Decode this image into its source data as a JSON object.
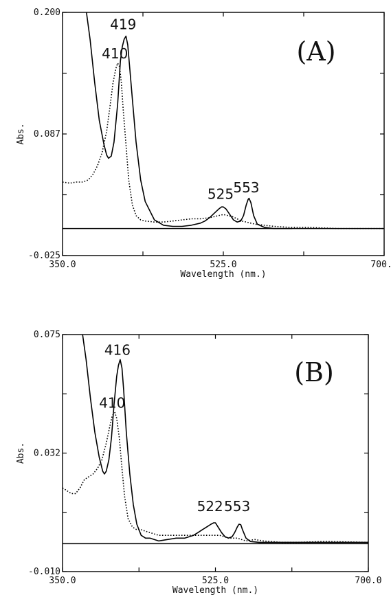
{
  "chart_data": [
    {
      "type": "line",
      "panel_label": "(A)",
      "xlabel": "Wavelength (nm.)",
      "ylabel": "Abs.",
      "xlim": [
        350.0,
        700.0
      ],
      "ylim": [
        -0.025,
        0.2
      ],
      "xticks": [
        "350.0",
        "525.0",
        "700.0"
      ],
      "yticks": [
        "0.200",
        "0.087",
        "-0.025"
      ],
      "peak_labels": [
        {
          "text": "419",
          "x": 419,
          "y": 0.18
        },
        {
          "text": "410",
          "x": 410,
          "y": 0.153
        },
        {
          "text": "525",
          "x": 525,
          "y": 0.023
        },
        {
          "text": "553",
          "x": 553,
          "y": 0.029
        }
      ],
      "baseline": 0.0,
      "series": [
        {
          "style": "solid",
          "x": [
            376,
            380,
            385,
            390,
            395,
            398,
            400,
            403,
            406,
            410,
            413,
            415,
            417,
            419,
            421,
            423,
            426,
            430,
            435,
            440,
            450,
            460,
            470,
            480,
            490,
            500,
            505,
            510,
            515,
            520,
            523,
            525,
            528,
            532,
            536,
            540,
            544,
            547,
            550,
            552,
            553,
            555,
            558,
            562,
            570,
            580,
            600
          ],
          "y": [
            0.2,
            0.175,
            0.135,
            0.1,
            0.078,
            0.068,
            0.065,
            0.067,
            0.08,
            0.115,
            0.155,
            0.168,
            0.175,
            0.178,
            0.17,
            0.15,
            0.12,
            0.08,
            0.045,
            0.025,
            0.008,
            0.003,
            0.002,
            0.002,
            0.003,
            0.005,
            0.007,
            0.01,
            0.014,
            0.018,
            0.02,
            0.02,
            0.018,
            0.013,
            0.008,
            0.006,
            0.007,
            0.012,
            0.022,
            0.027,
            0.028,
            0.024,
            0.012,
            0.004,
            0.001,
            0.0,
            0.0
          ]
        },
        {
          "style": "dotted",
          "x": [
            350,
            358,
            365,
            372,
            378,
            383,
            388,
            393,
            398,
            402,
            405,
            408,
            410,
            412,
            414,
            416,
            419,
            422,
            426,
            430,
            435,
            440,
            450,
            460,
            470,
            480,
            490,
            500,
            510,
            515,
            520,
            525,
            530,
            535,
            540,
            545,
            550,
            555,
            560,
            570,
            580,
            600,
            620,
            650,
            680,
            700
          ],
          "y": [
            0.043,
            0.042,
            0.043,
            0.043,
            0.045,
            0.05,
            0.058,
            0.07,
            0.09,
            0.115,
            0.135,
            0.148,
            0.153,
            0.15,
            0.135,
            0.11,
            0.078,
            0.045,
            0.022,
            0.012,
            0.008,
            0.007,
            0.006,
            0.006,
            0.007,
            0.008,
            0.009,
            0.009,
            0.01,
            0.011,
            0.012,
            0.013,
            0.012,
            0.011,
            0.009,
            0.007,
            0.006,
            0.005,
            0.004,
            0.003,
            0.002,
            0.001,
            0.001,
            0.0,
            0.0,
            0.0
          ]
        }
      ]
    },
    {
      "type": "line",
      "panel_label": "(B)",
      "xlabel": "Wavelength (nm.)",
      "ylabel": "Abs.",
      "xlim": [
        350.0,
        700.0
      ],
      "ylim": [
        -0.01,
        0.075
      ],
      "xticks": [
        "350.0",
        "525.0",
        "700.0"
      ],
      "yticks": [
        "0.075",
        "0.032",
        "-0.010"
      ],
      "peak_labels": [
        {
          "text": "416",
          "x": 416,
          "y": 0.066
        },
        {
          "text": "410",
          "x": 410,
          "y": 0.047
        },
        {
          "text": "522",
          "x": 522,
          "y": 0.01
        },
        {
          "text": "553",
          "x": 553,
          "y": 0.01
        }
      ],
      "baseline": 0.0,
      "series": [
        {
          "style": "solid",
          "x": [
            373,
            377,
            382,
            387,
            392,
            396,
            398,
            400,
            403,
            406,
            409,
            412,
            414,
            416,
            418,
            420,
            423,
            427,
            431,
            435,
            440,
            445,
            450,
            460,
            470,
            480,
            490,
            500,
            505,
            510,
            515,
            520,
            523,
            525,
            528,
            532,
            536,
            540,
            544,
            547,
            550,
            552,
            554,
            556,
            560,
            565,
            575,
            600,
            650,
            700
          ],
          "y": [
            0.075,
            0.066,
            0.052,
            0.04,
            0.031,
            0.026,
            0.025,
            0.026,
            0.03,
            0.038,
            0.05,
            0.06,
            0.064,
            0.066,
            0.063,
            0.055,
            0.04,
            0.025,
            0.014,
            0.007,
            0.003,
            0.002,
            0.002,
            0.001,
            0.0015,
            0.002,
            0.002,
            0.003,
            0.004,
            0.005,
            0.006,
            0.007,
            0.0075,
            0.0075,
            0.006,
            0.004,
            0.0025,
            0.002,
            0.0025,
            0.004,
            0.006,
            0.007,
            0.0068,
            0.005,
            0.002,
            0.0008,
            0.0005,
            0.0005,
            0.0005,
            0.0005
          ]
        },
        {
          "style": "dotted",
          "x": [
            350,
            355,
            360,
            365,
            370,
            375,
            380,
            385,
            390,
            395,
            400,
            404,
            407,
            410,
            412,
            415,
            418,
            421,
            425,
            430,
            435,
            440,
            450,
            460,
            470,
            480,
            490,
            500,
            510,
            520,
            525,
            530,
            540,
            550,
            560,
            570,
            580,
            600,
            620,
            650,
            700
          ],
          "y": [
            0.02,
            0.019,
            0.018,
            0.018,
            0.02,
            0.023,
            0.024,
            0.025,
            0.027,
            0.03,
            0.036,
            0.042,
            0.046,
            0.047,
            0.045,
            0.038,
            0.027,
            0.017,
            0.009,
            0.006,
            0.005,
            0.005,
            0.004,
            0.003,
            0.003,
            0.003,
            0.003,
            0.003,
            0.003,
            0.003,
            0.003,
            0.003,
            0.002,
            0.002,
            0.001,
            0.0015,
            0.001,
            0.0005,
            0.0005,
            0.0008,
            0.0005
          ]
        }
      ]
    }
  ]
}
